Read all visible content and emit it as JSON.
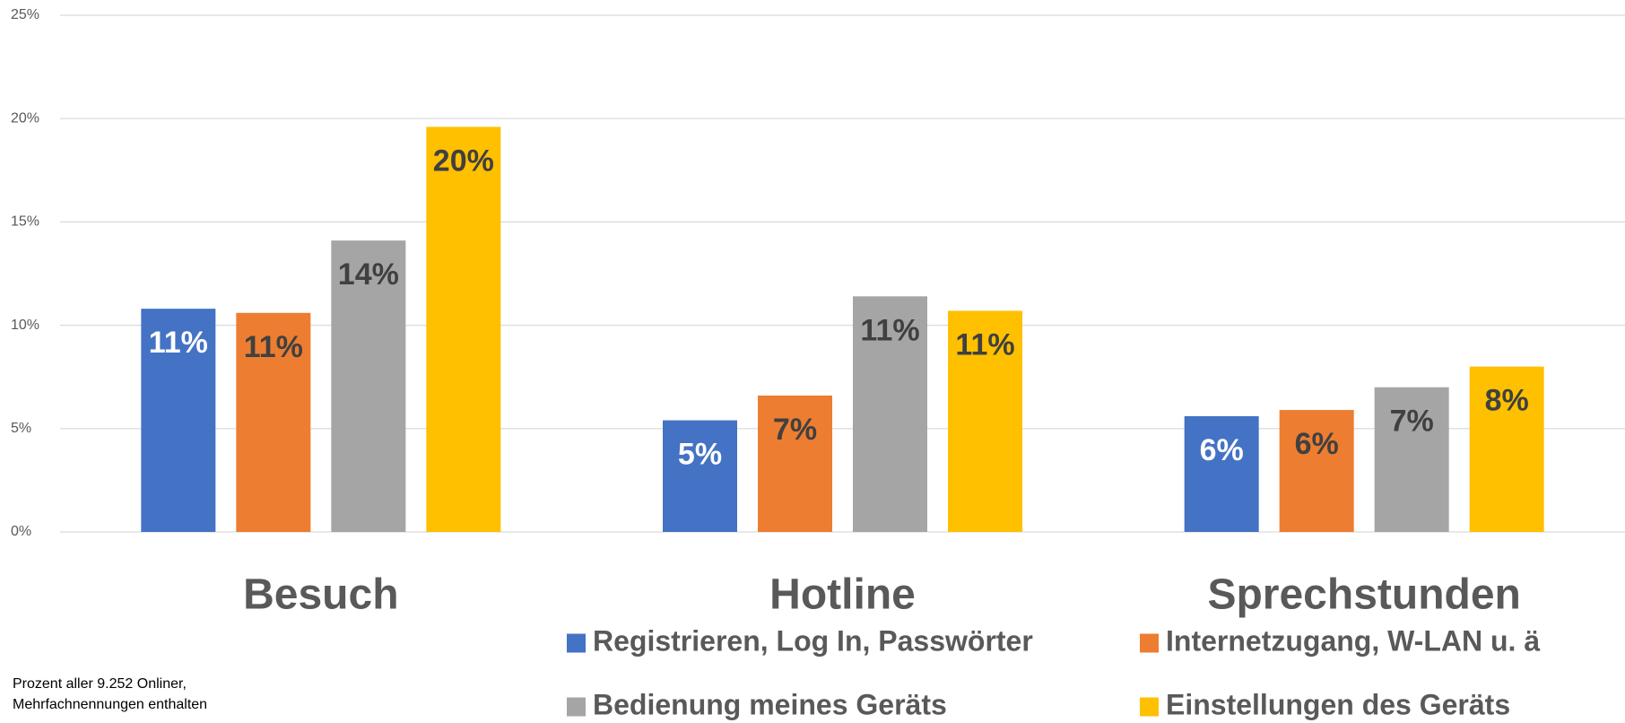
{
  "chart_data": {
    "type": "bar",
    "categories": [
      "Besuch",
      "Hotline",
      "Sprechstunden"
    ],
    "series": [
      {
        "name": "Registrieren, Log In, Passwörter",
        "color": "#4472c4",
        "label_color": "#ffffff",
        "values": [
          10.8,
          5.4,
          5.6
        ],
        "value_labels": [
          "11%",
          "5%",
          "6%"
        ]
      },
      {
        "name": "Internetzugang, W-LAN u. ä",
        "color": "#ed7d31",
        "label_color": "#404040",
        "values": [
          10.6,
          6.6,
          5.9
        ],
        "value_labels": [
          "11%",
          "7%",
          "6%"
        ]
      },
      {
        "name": "Bedienung meines Geräts",
        "color": "#a5a5a5",
        "label_color": "#404040",
        "values": [
          14.1,
          11.4,
          7.0
        ],
        "value_labels": [
          "14%",
          "11%",
          "7%"
        ]
      },
      {
        "name": "Einstellungen des Geräts",
        "color": "#ffc000",
        "label_color": "#404040",
        "values": [
          19.6,
          10.7,
          8.0
        ],
        "value_labels": [
          "20%",
          "11%",
          "8%"
        ]
      }
    ],
    "ylim": [
      0,
      25
    ],
    "yticks": [
      {
        "value": 0,
        "label": "0%"
      },
      {
        "value": 5,
        "label": "5%"
      },
      {
        "value": 10,
        "label": "10%"
      },
      {
        "value": 15,
        "label": "15%"
      },
      {
        "value": 20,
        "label": "20%"
      },
      {
        "value": 25,
        "label": "25%"
      }
    ],
    "grid": true,
    "legend": "bottom",
    "note": [
      "Prozent aller 9.252 Onliner,",
      "Mehrfachnennungen enthalten"
    ]
  }
}
